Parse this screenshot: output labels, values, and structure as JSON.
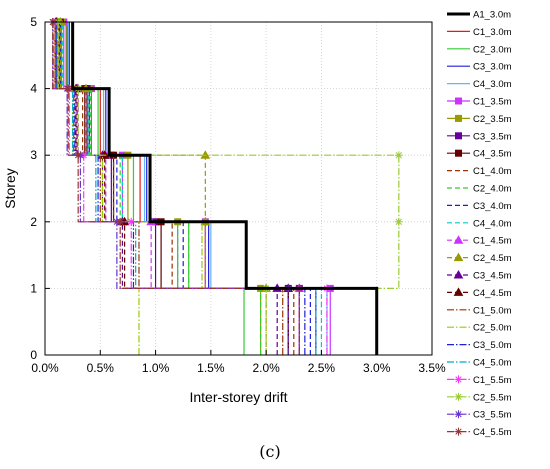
{
  "chart_data": {
    "type": "line",
    "caption": "(c)",
    "xlabel": "Inter-storey drift",
    "ylabel": "Storey",
    "xlim": [
      0,
      3.5
    ],
    "ylim": [
      0,
      5
    ],
    "x_ticks": [
      "0.0%",
      "0.5%",
      "1.0%",
      "1.5%",
      "2.0%",
      "2.5%",
      "3.0%",
      "3.5%"
    ],
    "y_ticks": [
      "0",
      "1",
      "2",
      "3",
      "4",
      "5"
    ],
    "grid": true,
    "legend_position": "right",
    "x_unit": "%",
    "series": [
      {
        "name": "A1_3.0m",
        "color": "#000000",
        "dash": "solid",
        "marker": "none",
        "width": 3,
        "values": [
          3.0,
          1.82,
          0.95,
          0.58,
          0.25
        ]
      },
      {
        "name": "C1_3.0m",
        "color": "#e41a1c",
        "dash": "solid",
        "marker": "none",
        "width": 1.2,
        "values": [
          2.2,
          1.45,
          0.86,
          0.5,
          0.2
        ]
      },
      {
        "name": "C2_3.0m",
        "color": "#33cc33",
        "dash": "solid",
        "marker": "none",
        "width": 1.2,
        "values": [
          1.8,
          1.3,
          0.8,
          0.48,
          0.19
        ]
      },
      {
        "name": "C3_3.0m",
        "color": "#1f1fd6",
        "dash": "solid",
        "marker": "none",
        "width": 1.2,
        "values": [
          2.45,
          1.48,
          0.92,
          0.55,
          0.22
        ]
      },
      {
        "name": "C4_3.0m",
        "color": "#66b3ff",
        "dash": "solid",
        "marker": "none",
        "width": 1.2,
        "values": [
          2.55,
          1.5,
          0.9,
          0.53,
          0.21
        ]
      },
      {
        "name": "C1_3.5m",
        "color": "#cc33ff",
        "dash": "solid",
        "marker": "square",
        "width": 1.2,
        "values": [
          2.58,
          1.45,
          0.7,
          0.42,
          0.17
        ]
      },
      {
        "name": "C2_3.5m",
        "color": "#999900",
        "dash": "solid",
        "marker": "square",
        "width": 1.2,
        "values": [
          1.95,
          1.2,
          0.75,
          0.4,
          0.15
        ]
      },
      {
        "name": "C3_3.5m",
        "color": "#660099",
        "dash": "solid",
        "marker": "square",
        "width": 1.2,
        "values": [
          2.3,
          1.0,
          0.6,
          0.38,
          0.14
        ]
      },
      {
        "name": "C4_3.5m",
        "color": "#660000",
        "dash": "solid",
        "marker": "square",
        "width": 1.2,
        "values": [
          2.2,
          1.05,
          0.62,
          0.36,
          0.13
        ]
      },
      {
        "name": "C1_4.0m",
        "color": "#993300",
        "dash": "dashed",
        "marker": "none",
        "width": 1.2,
        "values": [
          2.25,
          1.15,
          0.62,
          0.34,
          0.12
        ]
      },
      {
        "name": "C2_4.0m",
        "color": "#33cc33",
        "dash": "dashed",
        "marker": "none",
        "width": 1.2,
        "values": [
          1.95,
          1.3,
          0.68,
          0.41,
          0.13
        ]
      },
      {
        "name": "C3_4.0m",
        "color": "#1f1fd6",
        "dash": "dashed",
        "marker": "none",
        "width": 1.2,
        "values": [
          2.4,
          1.25,
          0.65,
          0.4,
          0.14
        ]
      },
      {
        "name": "C4_4.0m",
        "color": "#00cccc",
        "dash": "dashed",
        "marker": "none",
        "width": 1.2,
        "values": [
          2.5,
          1.2,
          0.7,
          0.39,
          0.16
        ]
      },
      {
        "name": "C1_4.5m",
        "color": "#cc33ff",
        "dash": "dashed",
        "marker": "triangle",
        "width": 1.2,
        "values": [
          2.3,
          0.96,
          0.55,
          0.3,
          0.11
        ]
      },
      {
        "name": "C2_4.5m",
        "color": "#999900",
        "dash": "dashed",
        "marker": "triangle",
        "width": 1.2,
        "values": [
          2.0,
          1.45,
          1.45,
          0.37,
          0.14
        ]
      },
      {
        "name": "C3_4.5m",
        "color": "#660099",
        "dash": "dashed",
        "marker": "triangle",
        "width": 1.2,
        "values": [
          2.1,
          0.7,
          0.52,
          0.29,
          0.1
        ]
      },
      {
        "name": "C4_4.5m",
        "color": "#660000",
        "dash": "dashed",
        "marker": "triangle",
        "width": 1.2,
        "values": [
          2.2,
          0.72,
          0.54,
          0.28,
          0.1
        ]
      },
      {
        "name": "C1_5.0m",
        "color": "#993300",
        "dash": "dashdot",
        "marker": "none",
        "width": 1.2,
        "values": [
          2.15,
          0.85,
          0.5,
          0.26,
          0.09
        ]
      },
      {
        "name": "C2_5.0m",
        "color": "#99cc00",
        "dash": "dashdot",
        "marker": "none",
        "width": 1.2,
        "values": [
          0.85,
          1.42,
          0.52,
          0.25,
          0.09
        ]
      },
      {
        "name": "C3_5.0m",
        "color": "#1f1fd6",
        "dash": "dashdot",
        "marker": "none",
        "width": 1.2,
        "values": [
          2.35,
          0.8,
          0.48,
          0.27,
          0.1
        ]
      },
      {
        "name": "C4_5.0m",
        "color": "#00aacc",
        "dash": "dashdot",
        "marker": "none",
        "width": 1.2,
        "values": [
          2.45,
          0.82,
          0.46,
          0.25,
          0.11
        ]
      },
      {
        "name": "C1_5.5m",
        "color": "#ff33ff",
        "dash": "dashdot",
        "marker": "star",
        "width": 1.2,
        "values": [
          2.55,
          0.78,
          0.35,
          0.22,
          0.08
        ]
      },
      {
        "name": "C2_5.5m",
        "color": "#99cc33",
        "dash": "dashdot",
        "marker": "star",
        "width": 1.2,
        "values": [
          2.0,
          3.2,
          3.2,
          0.3,
          0.12
        ]
      },
      {
        "name": "C3_5.5m",
        "color": "#6633cc",
        "dash": "dashdot",
        "marker": "star",
        "width": 1.2,
        "values": [
          2.2,
          0.65,
          0.32,
          0.2,
          0.07
        ]
      },
      {
        "name": "C4_5.5m",
        "color": "#993333",
        "dash": "dashdot",
        "marker": "star",
        "width": 1.2,
        "values": [
          2.3,
          0.68,
          0.3,
          0.21,
          0.07
        ]
      }
    ]
  }
}
